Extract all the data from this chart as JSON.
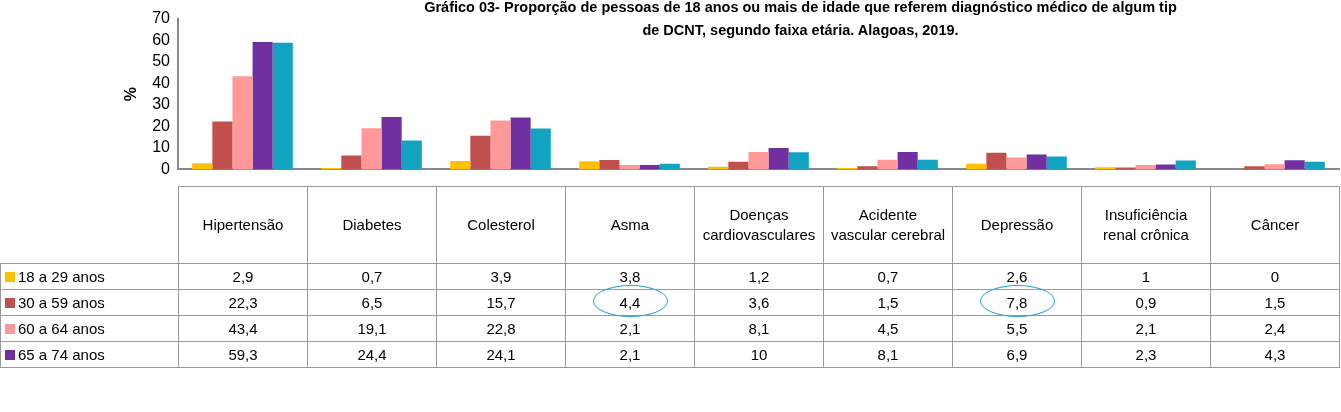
{
  "chart_data": {
    "type": "bar",
    "title": "Gráfico 03- Proporção de pessoas de 18  anos ou mais de idade que referem diagnóstico médico de algum tip\nde DCNT, segundo faixa etária. Alagoas, 2019.",
    "ylabel": "%",
    "categories": [
      "Hipertensão",
      "Diabetes",
      "Colesterol",
      "Asma",
      "Doenças cardiovasculares",
      "Acidente vascular cerebral",
      "Depressão",
      "Insuficiência renal crônica",
      "Câncer"
    ],
    "series": [
      {
        "name": "18 a 29 anos",
        "color": "#ffc000",
        "values": [
          2.9,
          0.7,
          3.9,
          3.8,
          1.2,
          0.7,
          2.6,
          1,
          0
        ],
        "value_labels": [
          "2,9",
          "0,7",
          "3,9",
          "3,8",
          "1,2",
          "0,7",
          "2,6",
          "1",
          "0"
        ]
      },
      {
        "name": "30 a 59 anos",
        "color": "#c0504d",
        "values": [
          22.3,
          6.5,
          15.7,
          4.4,
          3.6,
          1.5,
          7.8,
          0.9,
          1.5
        ],
        "value_labels": [
          "22,3",
          "6,5",
          "15,7",
          "4,4",
          "3,6",
          "1,5",
          "7,8",
          "0,9",
          "1,5"
        ]
      },
      {
        "name": "60 a 64 anos",
        "color": "#ff9999",
        "values": [
          43.4,
          19.1,
          22.8,
          2.1,
          8.1,
          4.5,
          5.5,
          2.1,
          2.4
        ],
        "value_labels": [
          "43,4",
          "19,1",
          "22,8",
          "2,1",
          "8,1",
          "4,5",
          "5,5",
          "2,1",
          "2,4"
        ]
      },
      {
        "name": "65 a 74 anos",
        "color": "#7030a0",
        "values": [
          59.3,
          24.4,
          24.1,
          2.1,
          10,
          8.1,
          6.9,
          2.3,
          4.3
        ],
        "value_labels": [
          "59,3",
          "24,4",
          "24,1",
          "2,1",
          "10",
          "8,1",
          "6,9",
          "2,3",
          "4,3"
        ]
      },
      {
        "color": "#12a3c3",
        "values": [
          59,
          13.4,
          19,
          2.6,
          8,
          4.5,
          6,
          4.2,
          3.6
        ]
      }
    ],
    "ylim": [
      0,
      70
    ],
    "yticks": [
      0,
      10,
      20,
      30,
      40,
      50,
      60,
      70
    ],
    "grid": false,
    "legend": "bottom left"
  }
}
